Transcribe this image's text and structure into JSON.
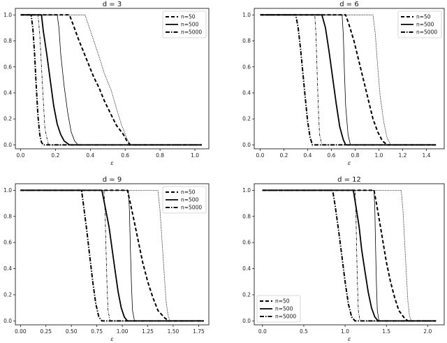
{
  "chart_data": [
    {
      "type": "line",
      "title": "d = 3",
      "xlabel": "ε",
      "ylabel": "",
      "xlim": [
        -0.03,
        1.08
      ],
      "ylim": [
        -0.03,
        1.05
      ],
      "xticks": [
        "0.0",
        "0.2",
        "0.4",
        "0.6",
        "0.8",
        "1.0"
      ],
      "yticks": [
        "0.0",
        "0.2",
        "0.4",
        "0.6",
        "0.8",
        "1.0"
      ],
      "legend_position": "top-right",
      "legend": [
        "n=50",
        "n=500",
        "n=5000"
      ],
      "series": [
        {
          "name": "n=50",
          "style": "dashed-bold",
          "x": [
            0.0,
            0.28,
            0.3,
            0.33,
            0.36,
            0.39,
            0.42,
            0.45,
            0.48,
            0.52,
            0.55,
            0.59,
            0.61,
            0.63,
            1.04
          ],
          "y": [
            1.0,
            1.0,
            0.93,
            0.82,
            0.72,
            0.62,
            0.52,
            0.44,
            0.34,
            0.23,
            0.15,
            0.08,
            0.03,
            0.0,
            0.0
          ]
        },
        {
          "name": "n=500",
          "style": "solid-bold",
          "x": [
            0.0,
            0.12,
            0.13,
            0.15,
            0.17,
            0.19,
            0.21,
            0.23,
            0.25,
            0.28,
            1.04
          ],
          "y": [
            1.0,
            1.0,
            0.88,
            0.7,
            0.5,
            0.3,
            0.16,
            0.08,
            0.03,
            0.0,
            0.0
          ]
        },
        {
          "name": "n=5000",
          "style": "dashdot-bold",
          "x": [
            0.0,
            0.06,
            0.07,
            0.08,
            0.09,
            0.1,
            0.11,
            0.12,
            0.13,
            1.04
          ],
          "y": [
            1.0,
            1.0,
            0.9,
            0.7,
            0.45,
            0.22,
            0.08,
            0.02,
            0.0,
            0.0
          ]
        },
        {
          "name": "",
          "style": "solid-thin",
          "x": [
            0.0,
            0.21,
            0.22,
            0.23,
            0.25,
            0.27,
            0.29,
            0.31,
            0.33,
            1.04
          ],
          "y": [
            1.0,
            1.0,
            0.9,
            0.7,
            0.45,
            0.25,
            0.1,
            0.03,
            0.0,
            0.0
          ]
        },
        {
          "name": "",
          "style": "dotted-thin",
          "x": [
            0.0,
            0.37,
            0.39,
            0.42,
            0.45,
            0.48,
            0.52,
            0.55,
            0.58,
            0.61,
            0.63,
            1.04
          ],
          "y": [
            1.0,
            1.0,
            0.92,
            0.8,
            0.68,
            0.55,
            0.42,
            0.28,
            0.15,
            0.05,
            0.0,
            0.0
          ]
        },
        {
          "name": "",
          "style": "dashdot-thin",
          "x": [
            0.0,
            0.1,
            0.11,
            0.12,
            0.13,
            0.14,
            0.16,
            1.04
          ],
          "y": [
            1.0,
            1.0,
            0.85,
            0.6,
            0.35,
            0.12,
            0.0,
            0.0
          ]
        }
      ]
    },
    {
      "type": "line",
      "title": "d = 6",
      "xlabel": "ε",
      "ylabel": "",
      "xlim": [
        -0.05,
        1.55
      ],
      "ylim": [
        -0.03,
        1.05
      ],
      "xticks": [
        "0.0",
        "0.2",
        "0.4",
        "0.6",
        "0.8",
        "1.0",
        "1.2",
        "1.4"
      ],
      "yticks": [
        "0.0",
        "0.2",
        "0.4",
        "0.6",
        "0.8",
        "1.0"
      ],
      "legend_position": "top-right",
      "legend": [
        "n=50",
        "n=500",
        "n=5000"
      ],
      "series": [
        {
          "name": "n=50",
          "style": "dashed-bold",
          "x": [
            0.0,
            0.72,
            0.75,
            0.79,
            0.83,
            0.87,
            0.91,
            0.95,
            0.99,
            1.03,
            1.07,
            1.48
          ],
          "y": [
            1.0,
            1.0,
            0.92,
            0.8,
            0.65,
            0.5,
            0.35,
            0.2,
            0.1,
            0.03,
            0.0,
            0.0
          ]
        },
        {
          "name": "n=500",
          "style": "solid-bold",
          "x": [
            0.0,
            0.52,
            0.55,
            0.58,
            0.61,
            0.64,
            0.67,
            0.7,
            0.72,
            1.48
          ],
          "y": [
            1.0,
            1.0,
            0.9,
            0.72,
            0.52,
            0.32,
            0.14,
            0.04,
            0.0,
            0.0
          ]
        },
        {
          "name": "n=5000",
          "style": "dashdot-bold",
          "x": [
            0.0,
            0.3,
            0.32,
            0.34,
            0.36,
            0.38,
            0.4,
            0.42,
            0.44,
            1.48
          ],
          "y": [
            1.0,
            1.0,
            0.9,
            0.74,
            0.55,
            0.36,
            0.18,
            0.06,
            0.0,
            0.0
          ]
        },
        {
          "name": "",
          "style": "solid-thin",
          "x": [
            0.0,
            0.69,
            0.7,
            0.71,
            0.72,
            0.74,
            0.76,
            1.48
          ],
          "y": [
            1.0,
            1.0,
            0.85,
            0.55,
            0.3,
            0.08,
            0.0,
            0.0
          ]
        },
        {
          "name": "",
          "style": "dotted-thin",
          "x": [
            0.0,
            0.95,
            0.97,
            0.99,
            1.01,
            1.04,
            1.07,
            1.1,
            1.48
          ],
          "y": [
            1.0,
            1.0,
            0.85,
            0.6,
            0.38,
            0.18,
            0.05,
            0.0,
            0.0
          ]
        },
        {
          "name": "",
          "style": "dashdot-thin",
          "x": [
            0.0,
            0.46,
            0.47,
            0.48,
            0.49,
            0.5,
            0.52,
            1.48
          ],
          "y": [
            1.0,
            1.0,
            0.85,
            0.55,
            0.28,
            0.08,
            0.0,
            0.0
          ]
        }
      ]
    },
    {
      "type": "line",
      "title": "d = 9",
      "xlabel": "ε",
      "ylabel": "",
      "xlim": [
        -0.05,
        1.85
      ],
      "ylim": [
        -0.03,
        1.05
      ],
      "xticks": [
        "0.00",
        "0.25",
        "0.50",
        "0.75",
        "1.00",
        "1.25",
        "1.50",
        "1.75"
      ],
      "yticks": [
        "0.0",
        "0.2",
        "0.4",
        "0.6",
        "0.8",
        "1.0"
      ],
      "legend_position": "top-right",
      "legend": [
        "n=50",
        "n=500",
        "n=5000"
      ],
      "series": [
        {
          "name": "n=50",
          "style": "dashed-bold",
          "x": [
            0.0,
            1.05,
            1.08,
            1.12,
            1.16,
            1.2,
            1.25,
            1.3,
            1.35,
            1.42,
            1.46,
            1.8
          ],
          "y": [
            1.0,
            1.0,
            0.9,
            0.75,
            0.6,
            0.45,
            0.3,
            0.18,
            0.08,
            0.02,
            0.0,
            0.0
          ]
        },
        {
          "name": "n=500",
          "style": "solid-bold",
          "x": [
            0.0,
            0.8,
            0.83,
            0.87,
            0.9,
            0.93,
            0.96,
            0.99,
            1.02,
            1.05,
            1.8
          ],
          "y": [
            1.0,
            1.0,
            0.88,
            0.72,
            0.55,
            0.38,
            0.22,
            0.1,
            0.03,
            0.0,
            0.0
          ]
        },
        {
          "name": "n=5000",
          "style": "dashdot-bold",
          "x": [
            0.0,
            0.6,
            0.62,
            0.65,
            0.68,
            0.71,
            0.74,
            0.77,
            0.8,
            1.8
          ],
          "y": [
            1.0,
            1.0,
            0.88,
            0.7,
            0.5,
            0.3,
            0.13,
            0.03,
            0.0,
            0.0
          ]
        },
        {
          "name": "",
          "style": "solid-thin",
          "x": [
            0.0,
            1.06,
            1.07,
            1.08,
            1.09,
            1.1,
            1.12,
            1.8
          ],
          "y": [
            1.0,
            1.0,
            0.85,
            0.55,
            0.28,
            0.08,
            0.0,
            0.0
          ]
        },
        {
          "name": "",
          "style": "dotted-thin",
          "x": [
            0.0,
            1.35,
            1.37,
            1.39,
            1.41,
            1.43,
            1.45,
            1.47,
            1.8
          ],
          "y": [
            1.0,
            1.0,
            0.85,
            0.62,
            0.38,
            0.15,
            0.04,
            0.0,
            0.0
          ]
        },
        {
          "name": "",
          "style": "dashdot-thin",
          "x": [
            0.0,
            0.82,
            0.83,
            0.84,
            0.85,
            0.86,
            0.88,
            1.8
          ],
          "y": [
            1.0,
            1.0,
            0.85,
            0.55,
            0.28,
            0.08,
            0.0,
            0.0
          ]
        }
      ]
    },
    {
      "type": "line",
      "title": "d = 12",
      "xlabel": "ε",
      "ylabel": "",
      "xlim": [
        -0.1,
        2.2
      ],
      "ylim": [
        -0.03,
        1.05
      ],
      "xticks": [
        "0.0",
        "0.5",
        "1.0",
        "1.5",
        "2.0"
      ],
      "yticks": [
        "0.0",
        "0.2",
        "0.4",
        "0.6",
        "0.8",
        "1.0"
      ],
      "legend_position": "bottom-left",
      "legend": [
        "n=50",
        "n=500",
        "n=5000"
      ],
      "series": [
        {
          "name": "n=50",
          "style": "dashed-bold",
          "x": [
            0.0,
            1.35,
            1.38,
            1.42,
            1.46,
            1.5,
            1.55,
            1.6,
            1.65,
            1.72,
            1.76,
            2.1
          ],
          "y": [
            1.0,
            1.0,
            0.9,
            0.75,
            0.6,
            0.45,
            0.3,
            0.18,
            0.08,
            0.02,
            0.0,
            0.0
          ]
        },
        {
          "name": "n=500",
          "style": "solid-bold",
          "x": [
            0.0,
            1.1,
            1.13,
            1.17,
            1.2,
            1.24,
            1.28,
            1.32,
            1.36,
            1.4,
            2.1
          ],
          "y": [
            1.0,
            1.0,
            0.88,
            0.72,
            0.55,
            0.38,
            0.22,
            0.1,
            0.03,
            0.0,
            0.0
          ]
        },
        {
          "name": "n=5000",
          "style": "dashdot-bold",
          "x": [
            0.0,
            0.85,
            0.88,
            0.92,
            0.96,
            1.0,
            1.04,
            1.08,
            1.12,
            2.1
          ],
          "y": [
            1.0,
            1.0,
            0.88,
            0.7,
            0.5,
            0.3,
            0.13,
            0.03,
            0.0,
            0.0
          ]
        },
        {
          "name": "",
          "style": "solid-thin",
          "x": [
            0.0,
            1.35,
            1.36,
            1.37,
            1.38,
            1.39,
            1.41,
            2.1
          ],
          "y": [
            1.0,
            1.0,
            0.85,
            0.55,
            0.28,
            0.08,
            0.0,
            0.0
          ]
        },
        {
          "name": "",
          "style": "dotted-thin",
          "x": [
            0.0,
            1.68,
            1.7,
            1.72,
            1.74,
            1.76,
            1.78,
            1.8,
            2.1
          ],
          "y": [
            1.0,
            1.0,
            0.85,
            0.62,
            0.38,
            0.15,
            0.04,
            0.0,
            0.0
          ]
        },
        {
          "name": "",
          "style": "dashdot-thin",
          "x": [
            0.0,
            1.12,
            1.13,
            1.14,
            1.15,
            1.16,
            1.18,
            2.1
          ],
          "y": [
            1.0,
            1.0,
            0.85,
            0.55,
            0.28,
            0.08,
            0.0,
            0.0
          ]
        }
      ]
    }
  ]
}
